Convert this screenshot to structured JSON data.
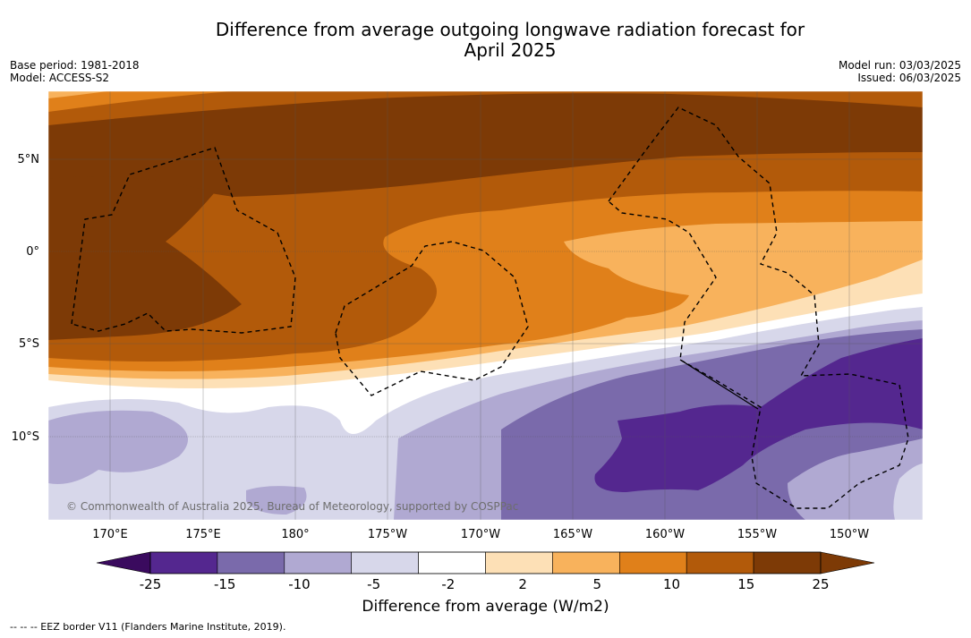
{
  "header": {
    "title_line1": "Difference from average outgoing longwave radiation forecast for",
    "title_line2": "April 2025",
    "base_period": "Base period: 1981-2018",
    "model": "Model: ACCESS-S2",
    "model_run": "Model run: 03/03/2025",
    "issued": "Issued: 06/03/2025"
  },
  "map": {
    "lat_labels": [
      "5°N",
      "0°",
      "5°S",
      "10°S"
    ],
    "lon_labels": [
      "170°E",
      "175°E",
      "180°",
      "175°W",
      "170°W",
      "165°W",
      "160°W",
      "155°W",
      "150°W"
    ],
    "copyright": "© Commonwealth of Australia 2025, Bureau of Meteorology, supported by COSPPac"
  },
  "colorbar": {
    "ticks": [
      "-25",
      "-15",
      "-10",
      "-5",
      "-2",
      "2",
      "5",
      "10",
      "15",
      "25"
    ],
    "colors": [
      "#54278f",
      "#7a6aab",
      "#b0a9d2",
      "#d7d7ea",
      "#ffffff",
      "#fde0b6",
      "#f8b25c",
      "#e0801a",
      "#b25a0a",
      "#7d3a06"
    ],
    "low_extend_color": "#3a0a5e",
    "label": "Difference from average (W/m2)"
  },
  "footer": {
    "legend": "--  --  -- EEZ border V11 (Flanders Marine Institute, 2019)."
  }
}
